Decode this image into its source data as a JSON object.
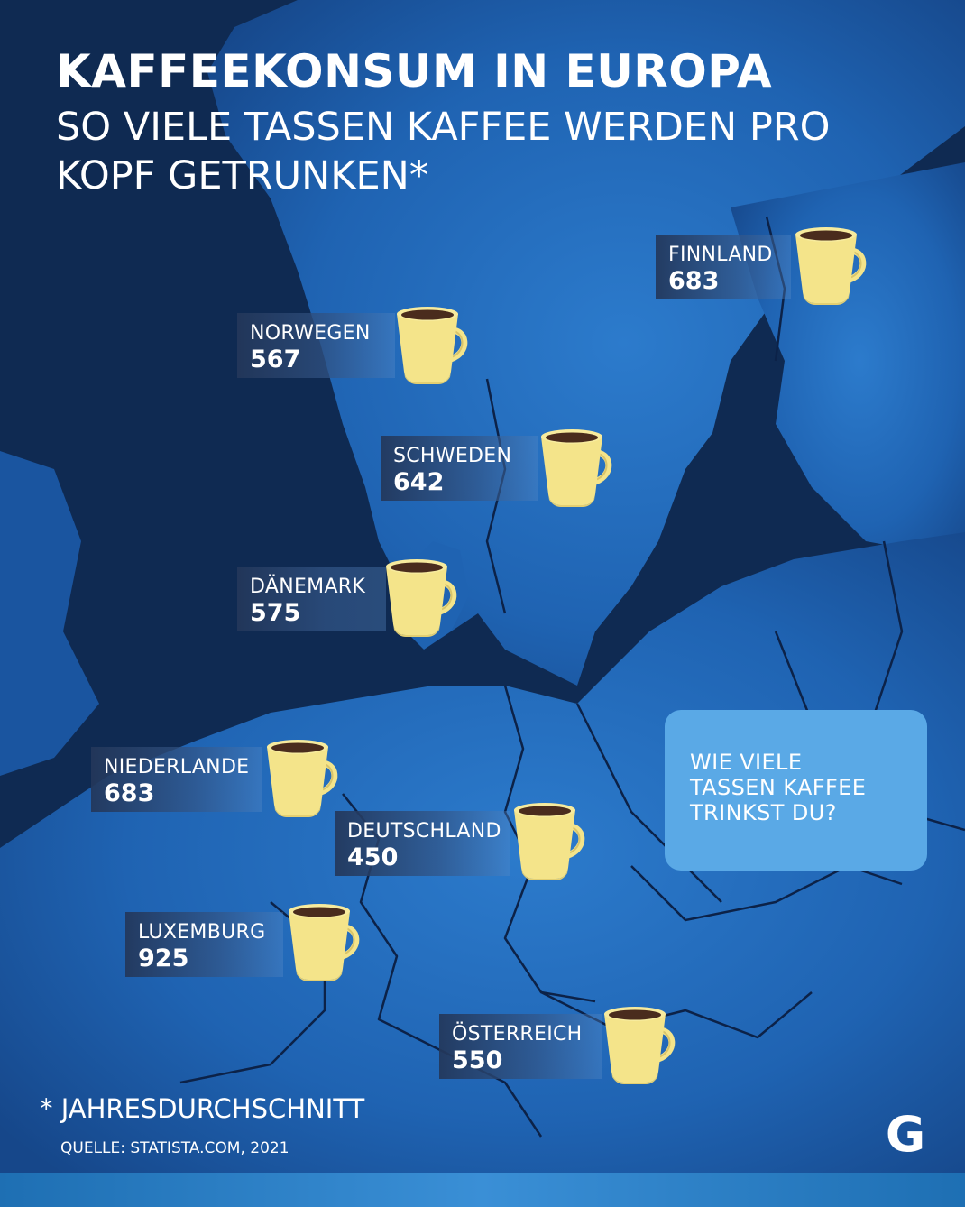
{
  "header": {
    "title": "KAFFEEKONSUM IN EUROPA",
    "subtitle": "SO VIELE TASSEN KAFFEE WERDEN PRO KOPF GETRUNKEN*"
  },
  "countries": [
    {
      "name": "FINNLAND",
      "value": "683"
    },
    {
      "name": "NORWEGEN",
      "value": "567"
    },
    {
      "name": "SCHWEDEN",
      "value": "642"
    },
    {
      "name": "DÄNEMARK",
      "value": "575"
    },
    {
      "name": "NIEDERLANDE",
      "value": "683"
    },
    {
      "name": "DEUTSCHLAND",
      "value": "450"
    },
    {
      "name": "LUXEMBURG",
      "value": "925"
    },
    {
      "name": "ÖSTERREICH",
      "value": "550"
    }
  ],
  "bubble": {
    "text": "WIE VIELE\nTASSEN KAFFEE\nTRINKST DU?"
  },
  "footer": {
    "footnote": "* JAHRESDURCHSCHNITT",
    "source": "QUELLE: STATISTA.COM, 2021",
    "logo_letter": "G"
  },
  "icons": {
    "cup": "coffee-cup-icon",
    "logo": "g-logo-icon"
  },
  "colors": {
    "sea": "#0f2a52",
    "land": "#1e5fae",
    "land_light": "#2a78c8",
    "border": "#0c2248",
    "cup_body": "#f4e48a",
    "coffee": "#4a2c1d",
    "bubble": "#5aa9e6",
    "text": "#ffffff"
  }
}
